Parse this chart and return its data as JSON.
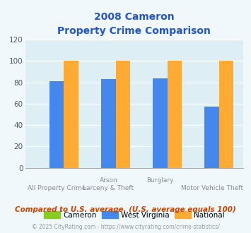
{
  "title_line1": "2008 Cameron",
  "title_line2": "Property Crime Comparison",
  "series": {
    "Cameron": [
      0,
      0,
      0,
      0
    ],
    "West Virginia": [
      81,
      83,
      84,
      57
    ],
    "National": [
      100,
      100,
      100,
      100
    ]
  },
  "colors": {
    "Cameron": "#88cc22",
    "West Virginia": "#4488ee",
    "National": "#ffaa33"
  },
  "ylim": [
    0,
    120
  ],
  "yticks": [
    0,
    20,
    40,
    60,
    80,
    100,
    120
  ],
  "title_color": "#2255cc",
  "background_color": "#f0f8fc",
  "plot_background": "#ddeef5",
  "grid_color": "#ffffff",
  "footnote": "Compared to U.S. average. (U.S. average equals 100)",
  "copyright": "© 2025 CityRating.com - https://www.cityrating.com/crime-statistics/",
  "footnote_color": "#cc4400",
  "copyright_color": "#999999"
}
